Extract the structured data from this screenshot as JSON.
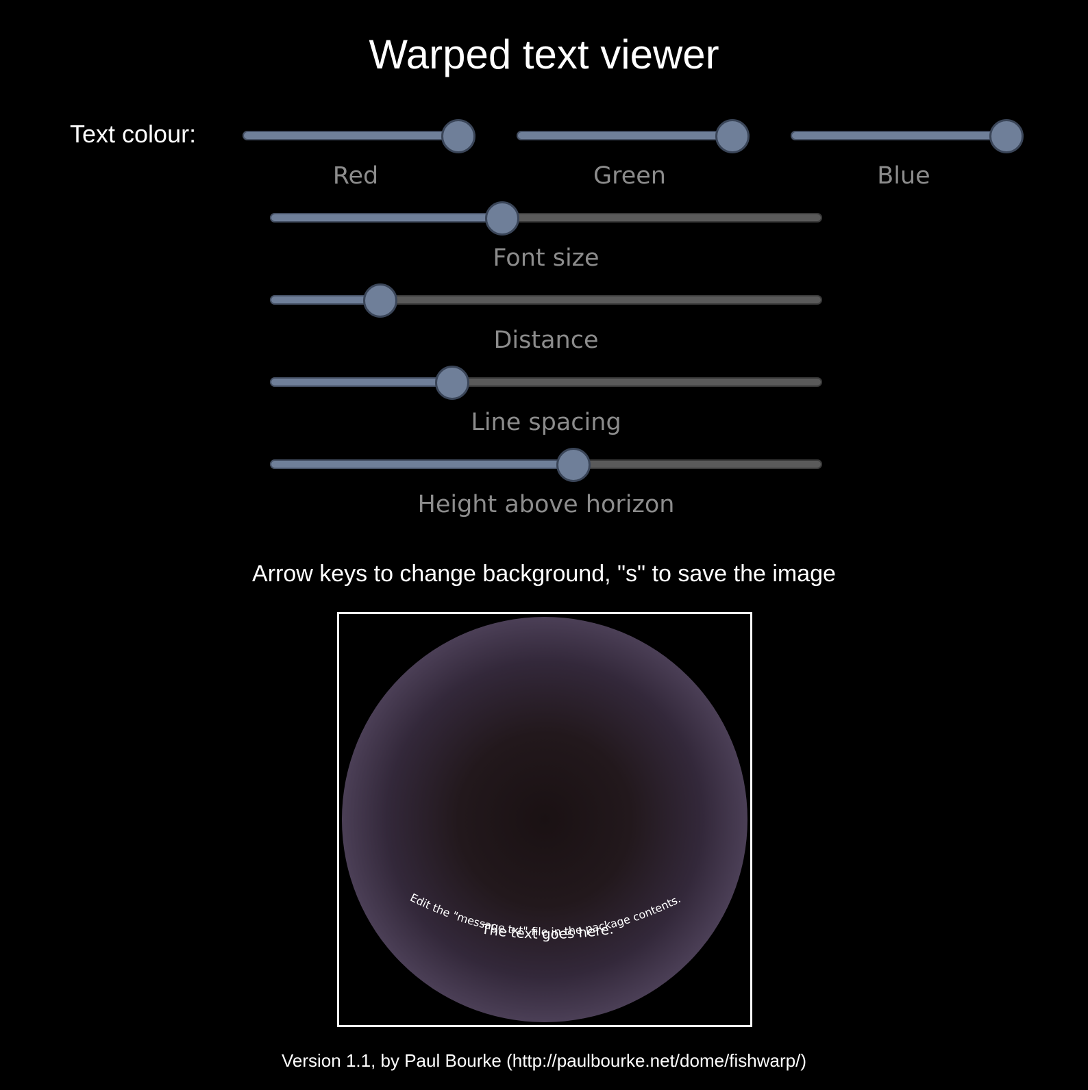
{
  "window": {
    "title": "Warped text viewer"
  },
  "text_colour": {
    "label": "Text colour:",
    "sliders": [
      {
        "name": "Red",
        "value": 1.0
      },
      {
        "name": "Green",
        "value": 1.0
      },
      {
        "name": "Blue",
        "value": 1.0
      }
    ]
  },
  "sliders": {
    "font_size": {
      "label": "Font size",
      "value": 0.42
    },
    "distance": {
      "label": "Distance",
      "value": 0.2
    },
    "line_spacing": {
      "label": "Line spacing",
      "value": 0.33
    },
    "height": {
      "label": "Height above horizon",
      "value": 0.55
    }
  },
  "hint": "Arrow keys to change background, \"s\" to save the  image",
  "preview": {
    "line1": "The text goes here.",
    "line2": "Edit the \"message.txt\" file in the package contents.",
    "colors": {
      "rim": "#b64a21",
      "center": "#1a1113",
      "text": "#ffffff"
    }
  },
  "footer": "Version 1.1, by Paul Bourke (http://paulbourke.net/dome/fishwarp/)"
}
